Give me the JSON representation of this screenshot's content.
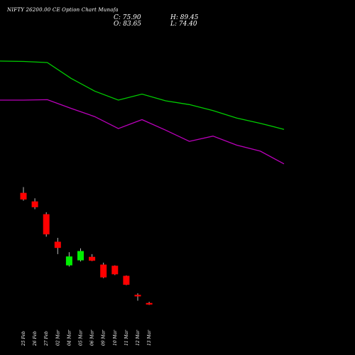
{
  "header": {
    "title": "NIFTY 26200.00 CE Option Chart Munafa",
    "close": "C: 75.90",
    "high": "H: 89.45",
    "open": "O: 83.65",
    "low": "L: 74.40"
  },
  "colors": {
    "background": "#000000",
    "up": "#00ee00",
    "down": "#ff0000",
    "line1": "#00cc00",
    "line2": "#bb00bb",
    "text": "#ffffff"
  },
  "chart_data": {
    "type": "candlestick",
    "title": "NIFTY 26200.00 CE Option Chart Munafa",
    "ohlc_scale": {
      "low": 0,
      "high": 235
    },
    "line_scale": {
      "low": 0,
      "high": 100
    },
    "candles": [
      {
        "date": "25 Feb",
        "open": 210,
        "high": 225,
        "low": 190,
        "close": 193
      },
      {
        "date": "26 Feb",
        "open": 188,
        "high": 196,
        "low": 168,
        "close": 173
      },
      {
        "date": "27 Feb",
        "open": 155,
        "high": 160,
        "low": 97,
        "close": 103
      },
      {
        "date": "02 Mar",
        "open": 84,
        "high": 94,
        "low": 52,
        "close": 68
      },
      {
        "date": "04 Mar",
        "open": 23,
        "high": 57,
        "low": 20,
        "close": 46
      },
      {
        "date": "05 Mar",
        "open": 36,
        "high": 67,
        "low": 33,
        "close": 60
      },
      {
        "date": "06 Mar",
        "open": 45,
        "high": 52,
        "low": 34,
        "close": 35
      },
      {
        "date": "09 Mar",
        "open": 25,
        "high": 30,
        "low": -10,
        "close": -8
      },
      {
        "date": "10 Mar",
        "open": 22,
        "high": 23,
        "low": -2,
        "close": 0
      },
      {
        "date": "11 Mar",
        "open": -4,
        "high": -3,
        "low": -28,
        "close": -27
      },
      {
        "date": "12 Mar",
        "open": -53,
        "high": -49,
        "low": -68,
        "close": -57
      },
      {
        "date": "13 Mar",
        "open": -74,
        "high": -71,
        "low": -79,
        "close": -78
      }
    ],
    "series": [
      {
        "color": "#00cc00",
        "values": [
          100,
          99.5,
          98,
          77,
          60,
          48,
          56,
          47,
          42,
          34,
          24,
          17,
          9
        ]
      },
      {
        "color": "#bb00bb",
        "values": [
          48,
          48,
          48.5,
          37,
          26,
          10,
          22,
          8,
          -7,
          0,
          -12,
          -20,
          -37
        ]
      }
    ],
    "line_x_dates": [
      "",
      "",
      "27 Feb",
      "",
      "",
      "",
      "",
      "",
      "",
      "",
      "",
      "",
      ""
    ]
  }
}
